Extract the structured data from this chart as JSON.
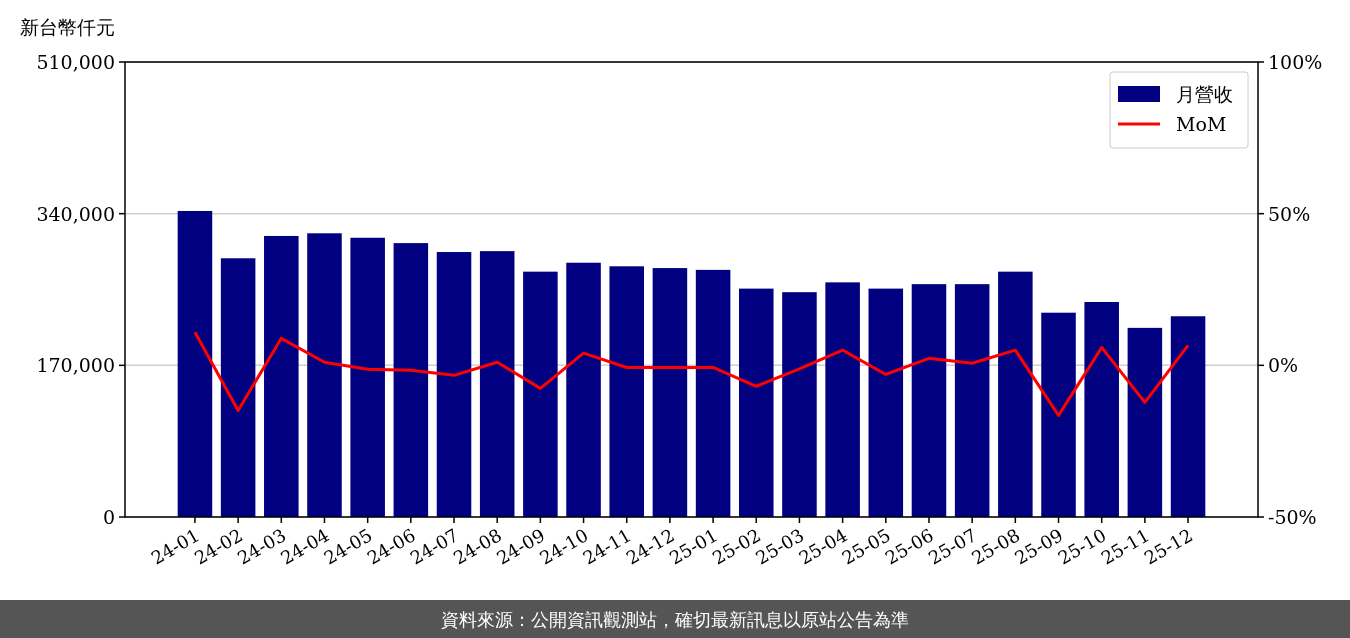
{
  "chart_data": {
    "type": "bar",
    "ylabel": "新台幣仟元",
    "categories": [
      "24-01",
      "24-02",
      "24-03",
      "24-04",
      "24-05",
      "24-06",
      "24-07",
      "24-08",
      "24-09",
      "24-10",
      "24-11",
      "24-12",
      "25-01",
      "25-02",
      "25-03",
      "25-04",
      "25-05",
      "25-06",
      "25-07",
      "25-08",
      "25-09",
      "25-10",
      "25-11",
      "25-12"
    ],
    "series": [
      {
        "name": "月營收",
        "color": "#000080",
        "values": [
          343000,
          290000,
          315000,
          318000,
          313000,
          307000,
          297000,
          298000,
          275000,
          285000,
          281000,
          279000,
          277000,
          256000,
          252000,
          263000,
          256000,
          261000,
          261000,
          275000,
          229000,
          241000,
          212000,
          225000
        ]
      },
      {
        "name": "MoM",
        "type": "line",
        "axis": "y2",
        "color": "#ff0000",
        "values": [
          10.9,
          -14.9,
          8.9,
          1.0,
          -1.3,
          -1.6,
          -3.3,
          1.0,
          -7.6,
          4.0,
          -0.7,
          -0.7,
          -0.7,
          -6.9,
          -1.2,
          5.0,
          -3.0,
          2.3,
          0.7,
          5.0,
          -16.5,
          5.9,
          -12.2,
          6.6
        ]
      }
    ],
    "ylim": [
      0,
      510000
    ],
    "yticks": [
      0,
      {
        "value": 170000,
        "label": "170,000"
      },
      {
        "value": 340000,
        "label": "340,000"
      },
      {
        "value": 510000,
        "label": "510,000"
      }
    ],
    "y2lim": [
      -50,
      100
    ],
    "y2ticks": [
      {
        "value": -50,
        "label": "-50%"
      },
      {
        "value": 0,
        "label": "0%"
      },
      {
        "value": 50,
        "label": "50%"
      },
      {
        "value": 100,
        "label": "100%"
      }
    ],
    "grid": "y",
    "legend": "top right",
    "annotations": [
      "資料來源：公開資訊觀測站，確切最新訊息以原站公告為準"
    ]
  }
}
